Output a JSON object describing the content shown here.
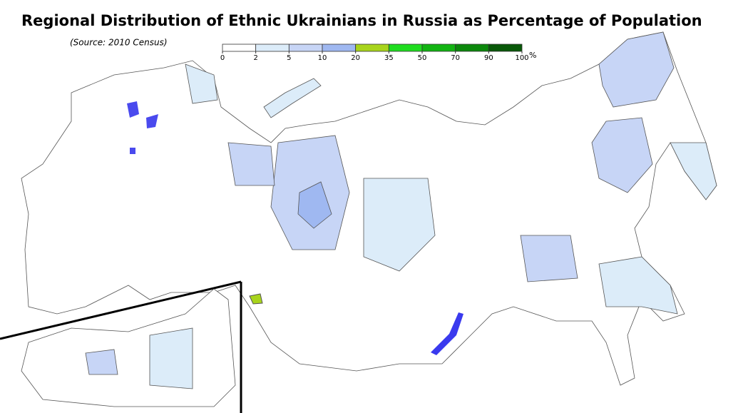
{
  "title": "Regional Distribution of Ethnic Ukrainians in Russia as Percentage of Population",
  "source": "(Source: 2010 Census)",
  "legend": {
    "ticks": [
      0,
      2,
      5,
      10,
      20,
      35,
      50,
      70,
      90,
      100
    ],
    "unit": "%",
    "colors": [
      "#ffffff",
      "#dcecf9",
      "#c7d5f6",
      "#9fb8f1",
      "#a8d41c",
      "#1fdd1f",
      "#12b412",
      "#0b880b",
      "#085808"
    ]
  }
}
